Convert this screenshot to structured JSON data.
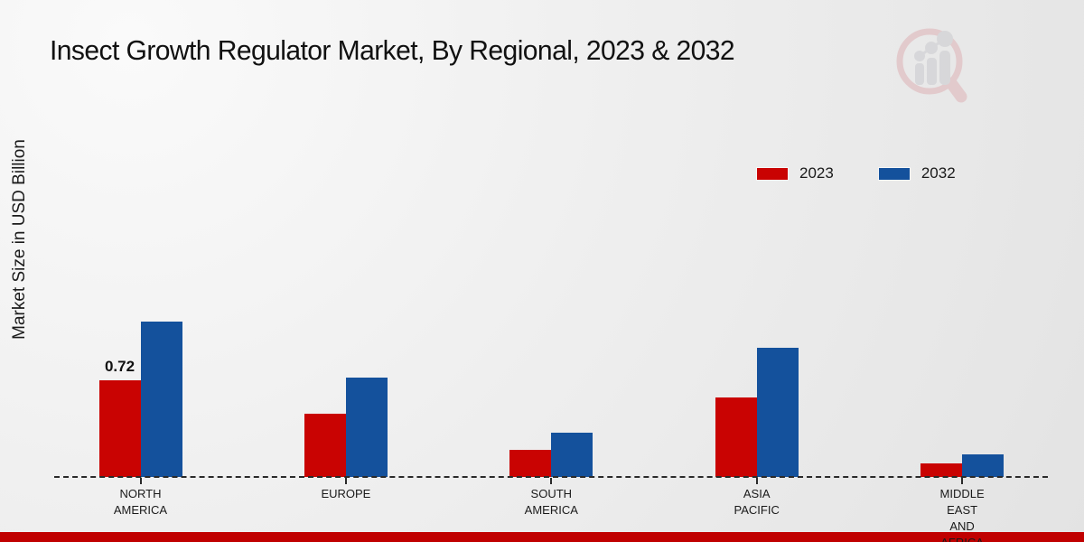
{
  "title": "Insect Growth Regulator Market, By Regional, 2023 & 2032",
  "y_axis_label": "Market Size in USD Billion",
  "legend": {
    "items": [
      {
        "label": "2023",
        "color": "#c90302"
      },
      {
        "label": "2032",
        "color": "#14519c"
      }
    ]
  },
  "colors": {
    "series_2023": "#c90302",
    "series_2032": "#14519c",
    "footer_band": "#c00000",
    "axis": "#2a2a2a",
    "text": "#1a1a1a"
  },
  "watermark_icon": "magnifier-bar-chart-logo",
  "chart_data": {
    "type": "bar",
    "title": "Insect Growth Regulator Market, By Regional, 2023 & 2032",
    "xlabel": "",
    "ylabel": "Market Size in USD Billion",
    "categories": [
      "NORTH AMERICA",
      "EUROPE",
      "SOUTH AMERICA",
      "ASIA PACIFIC",
      "MIDDLE EAST AND AFRICA"
    ],
    "category_lines": [
      [
        "NORTH",
        "AMERICA"
      ],
      [
        "EUROPE"
      ],
      [
        "SOUTH",
        "AMERICA"
      ],
      [
        "ASIA",
        "PACIFIC"
      ],
      [
        "MIDDLE",
        "EAST",
        "AND",
        "AFRICA"
      ]
    ],
    "series": [
      {
        "name": "2023",
        "color": "#c90302",
        "values": [
          0.72,
          0.47,
          0.2,
          0.59,
          0.1
        ]
      },
      {
        "name": "2032",
        "color": "#14519c",
        "values": [
          1.16,
          0.74,
          0.33,
          0.96,
          0.17
        ]
      }
    ],
    "data_labels": [
      {
        "series": "2023",
        "category_index": 0,
        "text": "0.72"
      }
    ],
    "ylim": [
      0,
      1.3
    ],
    "y_axis_visible": false,
    "grid": false,
    "baseline_style": "dashed",
    "legend_position": "upper-right"
  }
}
